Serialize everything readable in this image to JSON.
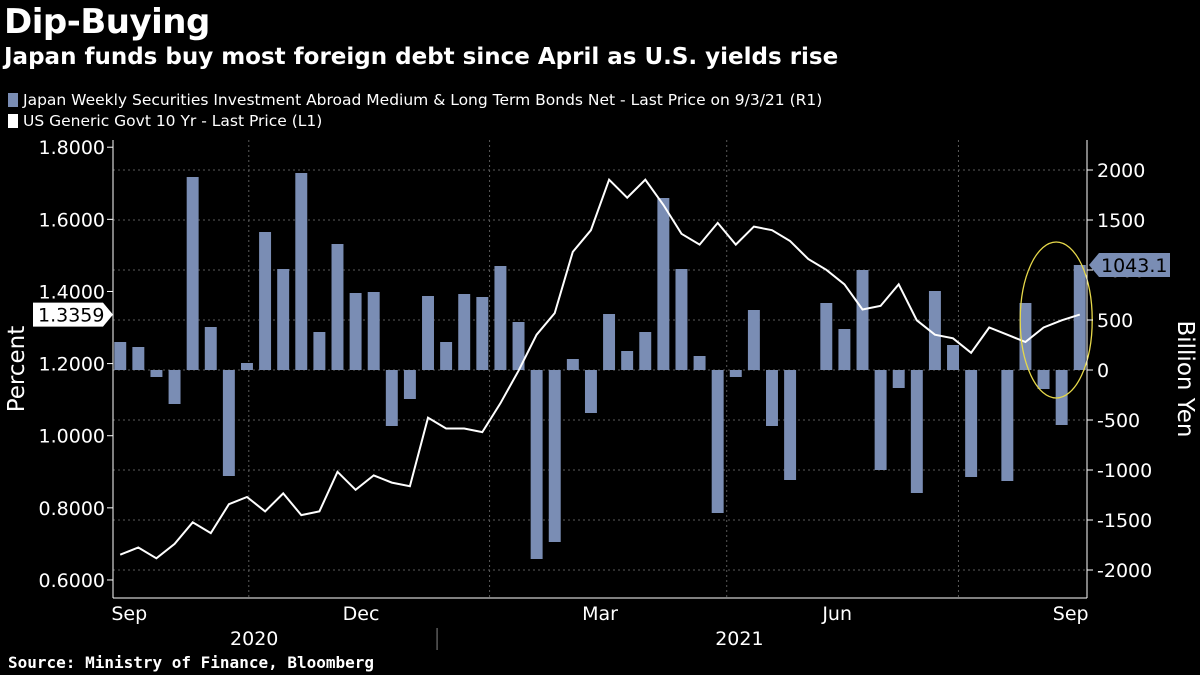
{
  "header": {
    "title": "Dip-Buying",
    "subtitle": "Japan funds buy most foreign debt since April as U.S. yields rise"
  },
  "footer": {
    "source": "Source: Ministry of Finance, Bloomberg"
  },
  "colors": {
    "bar": "#7a8db4",
    "line": "#ffffff",
    "background": "#000000",
    "highlight": "#e6d84a",
    "grid": "#5a5a5a"
  },
  "chart_data": {
    "type": "bar",
    "title": "Dip-Buying",
    "subtitle": "Japan funds buy most foreign debt since April as U.S. yields rise",
    "grid": true,
    "legend_position": "top-left",
    "left_axis": {
      "label": "Percent",
      "ylim": [
        0.55,
        1.82
      ],
      "ticks": [
        "1.8000",
        "1.6000",
        "1.4000",
        "1.2000",
        "1.0000",
        "0.8000",
        "0.6000"
      ],
      "tick_values": [
        1.8,
        1.6,
        1.4,
        1.2,
        1.0,
        0.8,
        0.6
      ]
    },
    "right_axis": {
      "label": "Billion Yen",
      "ylim": [
        -2280,
        2300
      ],
      "ticks": [
        "2000",
        "1500",
        "1000",
        "500",
        "0",
        "-500",
        "-1000",
        "-1500",
        "-2000"
      ],
      "tick_values": [
        2000,
        1500,
        1000,
        500,
        0,
        -500,
        -1000,
        -1500,
        -2000
      ]
    },
    "x_axis": {
      "month_labels": [
        {
          "label": "Sep",
          "week": 0.5
        },
        {
          "label": "Dec",
          "week": 13.3
        },
        {
          "label": "Mar",
          "week": 26.5
        },
        {
          "label": "Jun",
          "week": 39.6
        },
        {
          "label": "Sep",
          "week": 52.5
        }
      ],
      "year_labels": [
        {
          "label": "2020",
          "week": 7.4
        },
        {
          "label": "2021",
          "week": 34.2
        }
      ],
      "week_range": [
        -0.4,
        53.4
      ]
    },
    "series": [
      {
        "name": "Japan Weekly Securities Investment Abroad Medium & Long Term Bonds Net - Last Price on 9/3/21 (R1)",
        "axis": "right",
        "kind": "bar",
        "last_value_label": "1043.1",
        "values": [
          280,
          230,
          -70,
          -340,
          1930,
          430,
          -1060,
          70,
          1380,
          1010,
          1970,
          380,
          1260,
          770,
          780,
          -560,
          -290,
          740,
          280,
          760,
          730,
          1040,
          480,
          -1890,
          -1720,
          110,
          -430,
          560,
          190,
          380,
          1720,
          1010,
          140,
          -1430,
          -70,
          600,
          -560,
          -1100,
          0,
          670,
          410,
          1000,
          -1000,
          -180,
          -1230,
          790,
          250,
          -1070,
          0,
          -1110,
          670,
          -190,
          -550,
          1050
        ]
      },
      {
        "name": "US Generic Govt 10 Yr - Last Price (L1)",
        "axis": "left",
        "kind": "line",
        "last_value_label": "1.3359",
        "values": [
          0.67,
          0.69,
          0.66,
          0.7,
          0.76,
          0.73,
          0.81,
          0.83,
          0.79,
          0.84,
          0.78,
          0.79,
          0.9,
          0.85,
          0.89,
          0.87,
          0.86,
          1.05,
          1.02,
          1.02,
          1.01,
          1.09,
          1.18,
          1.28,
          1.34,
          1.51,
          1.57,
          1.71,
          1.66,
          1.71,
          1.64,
          1.56,
          1.53,
          1.59,
          1.53,
          1.58,
          1.57,
          1.54,
          1.49,
          1.46,
          1.42,
          1.35,
          1.36,
          1.42,
          1.32,
          1.28,
          1.27,
          1.23,
          1.3,
          1.28,
          1.26,
          1.3,
          1.32,
          1.3359
        ]
      }
    ]
  }
}
